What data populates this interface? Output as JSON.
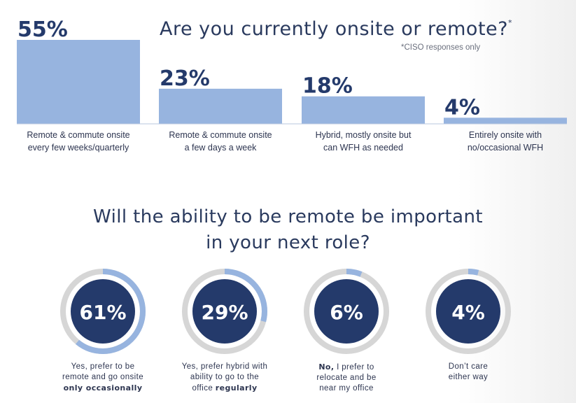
{
  "bar_chart": {
    "title": "Are you currently onsite or remote?",
    "title_mark": "*",
    "note": "*CISO responses only",
    "bar_color": "#97b4df"
  },
  "donut_chart": {
    "title_line1": "Will the ability to be remote be important",
    "title_line2": "in your next role?",
    "ring_color": "#d6d6d6",
    "fill_color": "#97b4df",
    "center_color": "#243a6b"
  },
  "chart_data": [
    {
      "type": "bar",
      "title": "Are you currently onsite or remote?*",
      "categories": [
        "Remote & commute onsite every few weeks/quarterly",
        "Remote & commute onsite a few days a week",
        "Hybrid, mostly onsite but can WFH as needed",
        "Entirely onsite with no/occasional WFH"
      ],
      "values": [
        55,
        23,
        18,
        4
      ],
      "value_labels": [
        "55%",
        "23%",
        "18%",
        "4%"
      ],
      "label_lines": [
        "Remote & commute onsite\nevery few weeks/quarterly",
        "Remote & commute onsite\na few days a week",
        "Hybrid, mostly onsite but\ncan WFH as needed",
        "Entirely onsite with\nno/occasional WFH"
      ],
      "ylim": [
        0,
        55
      ],
      "grid": false
    },
    {
      "type": "pie",
      "title": "Will the ability to be remote be important in your next role?",
      "values": [
        61,
        29,
        6,
        4
      ],
      "value_labels": [
        "61%",
        "29%",
        "6%",
        "4%"
      ],
      "categories": [
        "Yes, prefer to be remote and go onsite only occasionally",
        "Yes, prefer hybrid with ability to go to the office regularly",
        "No, I prefer to relocate and be near my office",
        "Don't care either way"
      ],
      "label_parts": [
        [
          {
            "t": "Yes, prefer to be"
          },
          {
            "t": "remote and go onsite"
          },
          {
            "b": "only occasionally"
          }
        ],
        [
          {
            "t": "Yes, prefer hybrid with"
          },
          {
            "t": "ability to go to the"
          },
          {
            "t": "office ",
            "b": "regularly"
          }
        ],
        [
          {
            "b": "No,",
            "t": " I prefer to"
          },
          {
            "t": "relocate and be"
          },
          {
            "t": "near my office"
          }
        ],
        [
          {
            "t": "Don’t care"
          },
          {
            "t": "either way"
          }
        ]
      ]
    }
  ]
}
